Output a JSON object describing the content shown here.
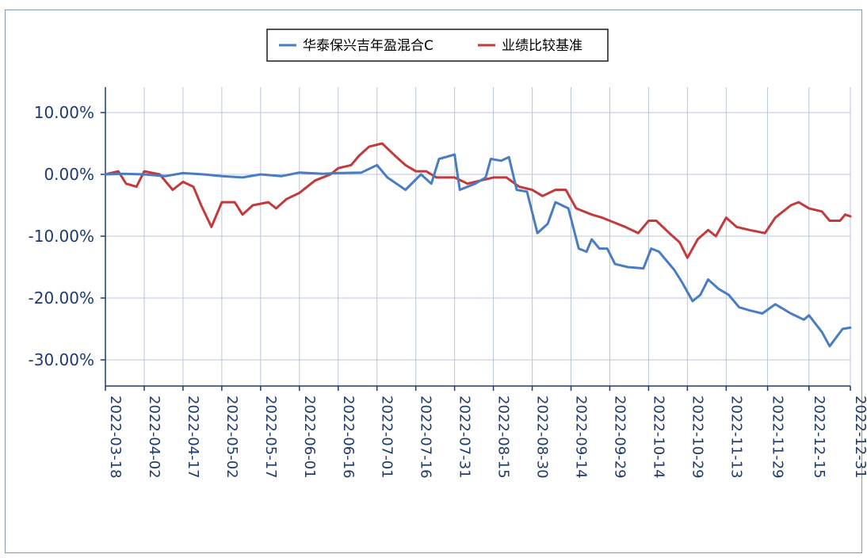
{
  "chart_data": {
    "type": "line",
    "title": "",
    "xlabel": "",
    "ylabel": "",
    "legend_position": "top-center",
    "grid": true,
    "ylim": [
      -34,
      14
    ],
    "y_ticks": [
      10,
      0,
      -10,
      -20,
      -30
    ],
    "y_tick_labels": [
      "10.00%",
      "0.00%",
      "-10.00%",
      "-20.00%",
      "-30.00%"
    ],
    "x_range": [
      "2022-03-18",
      "2022-12-31"
    ],
    "x_tick_labels": [
      "2022-03-18",
      "2022-04-02",
      "2022-04-17",
      "2022-05-02",
      "2022-05-17",
      "2022-06-01",
      "2022-06-16",
      "2022-07-01",
      "2022-07-16",
      "2022-07-31",
      "2022-08-15",
      "2022-08-30",
      "2022-09-14",
      "2022-09-29",
      "2022-10-14",
      "2022-10-29",
      "2022-11-13",
      "2022-11-29",
      "2022-12-15",
      "2022-12-31"
    ],
    "colors": {
      "fund": "#4a7cc4",
      "benchmark": "#c23a3a",
      "grid": "#b8c6dc",
      "axis": "#1f3a6e"
    },
    "series": [
      {
        "name": "华泰保兴吉年盈混合C",
        "color": "#4a7cc4",
        "points": [
          [
            "2022-03-18",
            0
          ],
          [
            "2022-03-25",
            0.1
          ],
          [
            "2022-04-02",
            0
          ],
          [
            "2022-04-10",
            -0.3
          ],
          [
            "2022-04-17",
            0.2
          ],
          [
            "2022-04-25",
            0
          ],
          [
            "2022-05-02",
            -0.3
          ],
          [
            "2022-05-10",
            -0.5
          ],
          [
            "2022-05-17",
            0
          ],
          [
            "2022-05-25",
            -0.3
          ],
          [
            "2022-06-01",
            0.3
          ],
          [
            "2022-06-10",
            0.1
          ],
          [
            "2022-06-16",
            0.2
          ],
          [
            "2022-06-25",
            0.3
          ],
          [
            "2022-07-01",
            1.5
          ],
          [
            "2022-07-05",
            -0.5
          ],
          [
            "2022-07-12",
            -2.5
          ],
          [
            "2022-07-18",
            0
          ],
          [
            "2022-07-22",
            -1.5
          ],
          [
            "2022-07-25",
            2.5
          ],
          [
            "2022-07-31",
            3.2
          ],
          [
            "2022-08-02",
            -2.5
          ],
          [
            "2022-08-08",
            -1.5
          ],
          [
            "2022-08-12",
            -0.5
          ],
          [
            "2022-08-14",
            2.5
          ],
          [
            "2022-08-18",
            2.2
          ],
          [
            "2022-08-21",
            2.8
          ],
          [
            "2022-08-24",
            -2.5
          ],
          [
            "2022-08-28",
            -2.8
          ],
          [
            "2022-09-01",
            -9.5
          ],
          [
            "2022-09-05",
            -8
          ],
          [
            "2022-09-08",
            -4.5
          ],
          [
            "2022-09-13",
            -5.5
          ],
          [
            "2022-09-17",
            -12
          ],
          [
            "2022-09-20",
            -12.5
          ],
          [
            "2022-09-22",
            -10.5
          ],
          [
            "2022-09-25",
            -12
          ],
          [
            "2022-09-28",
            -12
          ],
          [
            "2022-10-01",
            -14.5
          ],
          [
            "2022-10-06",
            -15
          ],
          [
            "2022-10-12",
            -15.2
          ],
          [
            "2022-10-15",
            -12
          ],
          [
            "2022-10-18",
            -12.5
          ],
          [
            "2022-10-24",
            -15.5
          ],
          [
            "2022-10-27",
            -17.5
          ],
          [
            "2022-10-31",
            -20.5
          ],
          [
            "2022-11-03",
            -19.5
          ],
          [
            "2022-11-06",
            -17
          ],
          [
            "2022-11-10",
            -18.5
          ],
          [
            "2022-11-14",
            -19.5
          ],
          [
            "2022-11-18",
            -21.5
          ],
          [
            "2022-11-22",
            -22
          ],
          [
            "2022-11-27",
            -22.5
          ],
          [
            "2022-12-02",
            -21
          ],
          [
            "2022-12-08",
            -22.5
          ],
          [
            "2022-12-13",
            -23.5
          ],
          [
            "2022-12-15",
            -22.8
          ],
          [
            "2022-12-20",
            -25.5
          ],
          [
            "2022-12-23",
            -27.8
          ],
          [
            "2022-12-28",
            -25
          ],
          [
            "2022-12-31",
            -24.8
          ]
        ]
      },
      {
        "name": "业绩比较基准",
        "color": "#c23a3a",
        "points": [
          [
            "2022-03-18",
            0
          ],
          [
            "2022-03-23",
            0.5
          ],
          [
            "2022-03-26",
            -1.5
          ],
          [
            "2022-03-30",
            -2
          ],
          [
            "2022-04-02",
            0.5
          ],
          [
            "2022-04-08",
            0
          ],
          [
            "2022-04-13",
            -2.5
          ],
          [
            "2022-04-17",
            -1.2
          ],
          [
            "2022-04-21",
            -2
          ],
          [
            "2022-04-24",
            -5
          ],
          [
            "2022-04-28",
            -8.5
          ],
          [
            "2022-05-02",
            -4.5
          ],
          [
            "2022-05-07",
            -4.5
          ],
          [
            "2022-05-10",
            -6.5
          ],
          [
            "2022-05-14",
            -5
          ],
          [
            "2022-05-20",
            -4.5
          ],
          [
            "2022-05-23",
            -5.5
          ],
          [
            "2022-05-27",
            -4
          ],
          [
            "2022-06-01",
            -3
          ],
          [
            "2022-06-07",
            -1
          ],
          [
            "2022-06-13",
            0
          ],
          [
            "2022-06-16",
            1
          ],
          [
            "2022-06-21",
            1.5
          ],
          [
            "2022-06-24",
            3
          ],
          [
            "2022-06-28",
            4.5
          ],
          [
            "2022-07-03",
            5
          ],
          [
            "2022-07-08",
            3
          ],
          [
            "2022-07-12",
            1.5
          ],
          [
            "2022-07-16",
            0.5
          ],
          [
            "2022-07-20",
            0.5
          ],
          [
            "2022-07-24",
            -0.5
          ],
          [
            "2022-07-31",
            -0.5
          ],
          [
            "2022-08-05",
            -1.5
          ],
          [
            "2022-08-10",
            -1
          ],
          [
            "2022-08-15",
            -0.5
          ],
          [
            "2022-08-20",
            -0.5
          ],
          [
            "2022-08-25",
            -2
          ],
          [
            "2022-08-30",
            -2.5
          ],
          [
            "2022-09-03",
            -3.5
          ],
          [
            "2022-09-08",
            -2.5
          ],
          [
            "2022-09-12",
            -2.5
          ],
          [
            "2022-09-16",
            -5.5
          ],
          [
            "2022-09-22",
            -6.5
          ],
          [
            "2022-09-26",
            -7
          ],
          [
            "2022-09-29",
            -7.5
          ],
          [
            "2022-10-05",
            -8.5
          ],
          [
            "2022-10-10",
            -9.5
          ],
          [
            "2022-10-14",
            -7.5
          ],
          [
            "2022-10-17",
            -7.5
          ],
          [
            "2022-10-22",
            -9.5
          ],
          [
            "2022-10-26",
            -11
          ],
          [
            "2022-10-29",
            -13.5
          ],
          [
            "2022-11-02",
            -10.5
          ],
          [
            "2022-11-06",
            -9
          ],
          [
            "2022-11-09",
            -10
          ],
          [
            "2022-11-13",
            -7
          ],
          [
            "2022-11-17",
            -8.5
          ],
          [
            "2022-11-22",
            -9
          ],
          [
            "2022-11-28",
            -9.5
          ],
          [
            "2022-12-02",
            -7
          ],
          [
            "2022-12-08",
            -5
          ],
          [
            "2022-12-11",
            -4.5
          ],
          [
            "2022-12-15",
            -5.5
          ],
          [
            "2022-12-20",
            -6
          ],
          [
            "2022-12-23",
            -7.5
          ],
          [
            "2022-12-27",
            -7.5
          ],
          [
            "2022-12-29",
            -6.5
          ],
          [
            "2022-12-31",
            -6.8
          ]
        ]
      }
    ]
  }
}
